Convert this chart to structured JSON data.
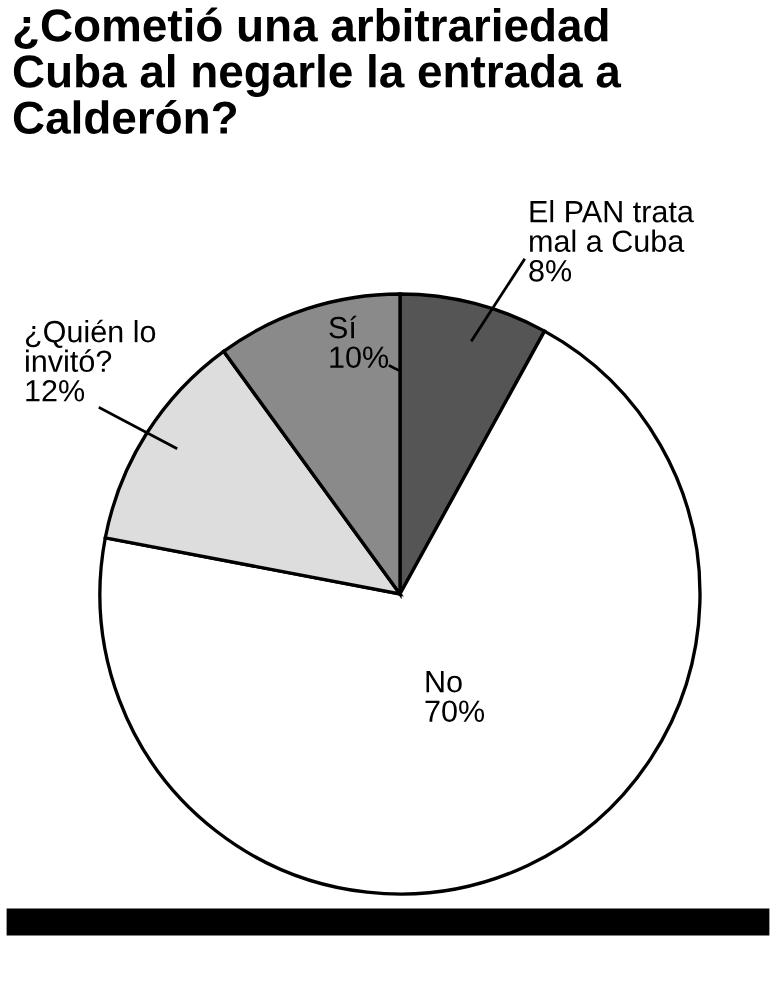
{
  "chart_data": {
    "type": "pie",
    "title": "¿Cometió una arbitrariedad\nCuba al negarle la entrada a\nCalderón?",
    "categories": [
      "El PAN trata\nmal a Cuba",
      "No",
      "¿Quién lo\ninvitó?",
      "Sí"
    ],
    "values": [
      8,
      70,
      12,
      10
    ],
    "colors": [
      "#555555",
      "#ffffff",
      "#dddddd",
      "#8a8a8a"
    ],
    "value_labels": [
      "8%",
      "70%",
      "12%",
      "10%"
    ]
  }
}
